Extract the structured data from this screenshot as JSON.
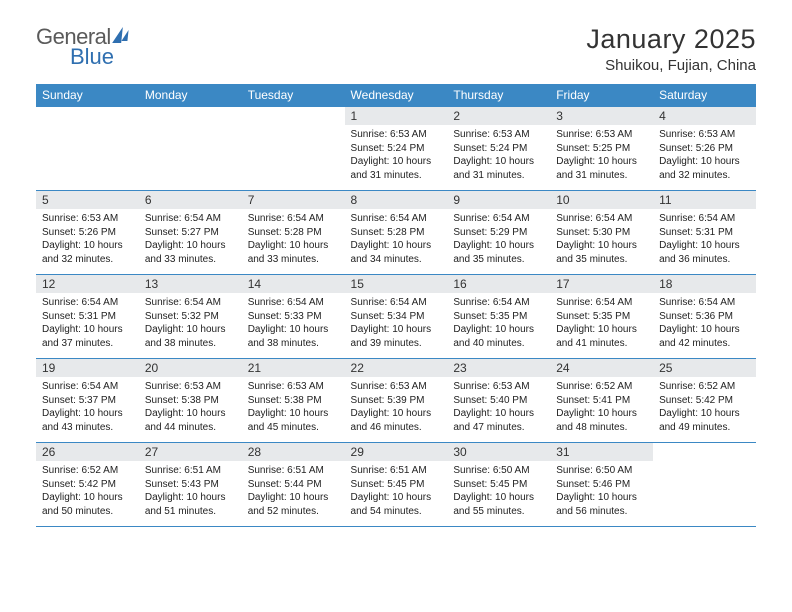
{
  "brand": {
    "part1": "General",
    "part2": "Blue"
  },
  "title": "January 2025",
  "location": "Shuikou, Fujian, China",
  "colors": {
    "header_bg": "#3b88c4",
    "header_text": "#ffffff",
    "daynum_bg": "#e7e9eb",
    "rule": "#3b88c4",
    "body_text": "#222222",
    "page_bg": "#ffffff",
    "logo_gray": "#5a5a5a",
    "logo_blue": "#2f6fb0"
  },
  "typography": {
    "title_fontsize": 27,
    "location_fontsize": 15,
    "weekday_fontsize": 12,
    "daynum_fontsize": 12,
    "cell_fontsize": 10
  },
  "weekdays": [
    "Sunday",
    "Monday",
    "Tuesday",
    "Wednesday",
    "Thursday",
    "Friday",
    "Saturday"
  ],
  "weeks": [
    [
      {
        "n": "",
        "sr": "",
        "ss": "",
        "dl": ""
      },
      {
        "n": "",
        "sr": "",
        "ss": "",
        "dl": ""
      },
      {
        "n": "",
        "sr": "",
        "ss": "",
        "dl": ""
      },
      {
        "n": "1",
        "sr": "6:53 AM",
        "ss": "5:24 PM",
        "dl": "10 hours and 31 minutes."
      },
      {
        "n": "2",
        "sr": "6:53 AM",
        "ss": "5:24 PM",
        "dl": "10 hours and 31 minutes."
      },
      {
        "n": "3",
        "sr": "6:53 AM",
        "ss": "5:25 PM",
        "dl": "10 hours and 31 minutes."
      },
      {
        "n": "4",
        "sr": "6:53 AM",
        "ss": "5:26 PM",
        "dl": "10 hours and 32 minutes."
      }
    ],
    [
      {
        "n": "5",
        "sr": "6:53 AM",
        "ss": "5:26 PM",
        "dl": "10 hours and 32 minutes."
      },
      {
        "n": "6",
        "sr": "6:54 AM",
        "ss": "5:27 PM",
        "dl": "10 hours and 33 minutes."
      },
      {
        "n": "7",
        "sr": "6:54 AM",
        "ss": "5:28 PM",
        "dl": "10 hours and 33 minutes."
      },
      {
        "n": "8",
        "sr": "6:54 AM",
        "ss": "5:28 PM",
        "dl": "10 hours and 34 minutes."
      },
      {
        "n": "9",
        "sr": "6:54 AM",
        "ss": "5:29 PM",
        "dl": "10 hours and 35 minutes."
      },
      {
        "n": "10",
        "sr": "6:54 AM",
        "ss": "5:30 PM",
        "dl": "10 hours and 35 minutes."
      },
      {
        "n": "11",
        "sr": "6:54 AM",
        "ss": "5:31 PM",
        "dl": "10 hours and 36 minutes."
      }
    ],
    [
      {
        "n": "12",
        "sr": "6:54 AM",
        "ss": "5:31 PM",
        "dl": "10 hours and 37 minutes."
      },
      {
        "n": "13",
        "sr": "6:54 AM",
        "ss": "5:32 PM",
        "dl": "10 hours and 38 minutes."
      },
      {
        "n": "14",
        "sr": "6:54 AM",
        "ss": "5:33 PM",
        "dl": "10 hours and 38 minutes."
      },
      {
        "n": "15",
        "sr": "6:54 AM",
        "ss": "5:34 PM",
        "dl": "10 hours and 39 minutes."
      },
      {
        "n": "16",
        "sr": "6:54 AM",
        "ss": "5:35 PM",
        "dl": "10 hours and 40 minutes."
      },
      {
        "n": "17",
        "sr": "6:54 AM",
        "ss": "5:35 PM",
        "dl": "10 hours and 41 minutes."
      },
      {
        "n": "18",
        "sr": "6:54 AM",
        "ss": "5:36 PM",
        "dl": "10 hours and 42 minutes."
      }
    ],
    [
      {
        "n": "19",
        "sr": "6:54 AM",
        "ss": "5:37 PM",
        "dl": "10 hours and 43 minutes."
      },
      {
        "n": "20",
        "sr": "6:53 AM",
        "ss": "5:38 PM",
        "dl": "10 hours and 44 minutes."
      },
      {
        "n": "21",
        "sr": "6:53 AM",
        "ss": "5:38 PM",
        "dl": "10 hours and 45 minutes."
      },
      {
        "n": "22",
        "sr": "6:53 AM",
        "ss": "5:39 PM",
        "dl": "10 hours and 46 minutes."
      },
      {
        "n": "23",
        "sr": "6:53 AM",
        "ss": "5:40 PM",
        "dl": "10 hours and 47 minutes."
      },
      {
        "n": "24",
        "sr": "6:52 AM",
        "ss": "5:41 PM",
        "dl": "10 hours and 48 minutes."
      },
      {
        "n": "25",
        "sr": "6:52 AM",
        "ss": "5:42 PM",
        "dl": "10 hours and 49 minutes."
      }
    ],
    [
      {
        "n": "26",
        "sr": "6:52 AM",
        "ss": "5:42 PM",
        "dl": "10 hours and 50 minutes."
      },
      {
        "n": "27",
        "sr": "6:51 AM",
        "ss": "5:43 PM",
        "dl": "10 hours and 51 minutes."
      },
      {
        "n": "28",
        "sr": "6:51 AM",
        "ss": "5:44 PM",
        "dl": "10 hours and 52 minutes."
      },
      {
        "n": "29",
        "sr": "6:51 AM",
        "ss": "5:45 PM",
        "dl": "10 hours and 54 minutes."
      },
      {
        "n": "30",
        "sr": "6:50 AM",
        "ss": "5:45 PM",
        "dl": "10 hours and 55 minutes."
      },
      {
        "n": "31",
        "sr": "6:50 AM",
        "ss": "5:46 PM",
        "dl": "10 hours and 56 minutes."
      },
      {
        "n": "",
        "sr": "",
        "ss": "",
        "dl": ""
      }
    ]
  ],
  "labels": {
    "sunrise": "Sunrise: ",
    "sunset": "Sunset: ",
    "daylight": "Daylight: "
  }
}
